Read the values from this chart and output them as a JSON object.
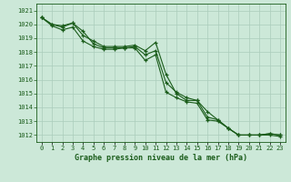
{
  "title": "Graphe pression niveau de la mer (hPa)",
  "background_color": "#cce8d8",
  "plot_bg_color": "#cce8d8",
  "grid_color": "#aaccbb",
  "line_color": "#1a5c1a",
  "x_labels": [
    "0",
    "1",
    "2",
    "3",
    "4",
    "5",
    "6",
    "7",
    "8",
    "9",
    "10",
    "11",
    "12",
    "13",
    "14",
    "15",
    "16",
    "17",
    "18",
    "19",
    "20",
    "21",
    "22",
    "23"
  ],
  "ylim": [
    1011.5,
    1021.5
  ],
  "yticks": [
    1012,
    1013,
    1014,
    1015,
    1016,
    1017,
    1018,
    1019,
    1020,
    1021
  ],
  "series": [
    [
      1020.5,
      1020.0,
      1019.9,
      1020.1,
      1019.2,
      1018.8,
      1018.4,
      1018.4,
      1018.4,
      1018.5,
      1018.1,
      1018.7,
      1016.4,
      1015.0,
      1014.5,
      1014.5,
      1013.7,
      1013.1,
      1012.5,
      1012.0,
      1012.0,
      1012.0,
      1012.1,
      1012.0
    ],
    [
      1020.5,
      1019.9,
      1019.6,
      1019.8,
      1018.8,
      1018.4,
      1018.2,
      1018.2,
      1018.3,
      1018.3,
      1017.4,
      1017.8,
      1015.1,
      1014.7,
      1014.4,
      1014.3,
      1013.1,
      1013.0,
      1012.5,
      1012.0,
      1012.0,
      1012.0,
      1012.0,
      1011.9
    ],
    [
      1020.5,
      1020.0,
      1019.8,
      1020.1,
      1019.5,
      1018.6,
      1018.3,
      1018.3,
      1018.3,
      1018.4,
      1017.8,
      1018.1,
      1015.8,
      1015.1,
      1014.7,
      1014.5,
      1013.3,
      1013.1,
      1012.5,
      1012.0,
      1012.0,
      1012.0,
      1012.1,
      1012.0
    ]
  ]
}
